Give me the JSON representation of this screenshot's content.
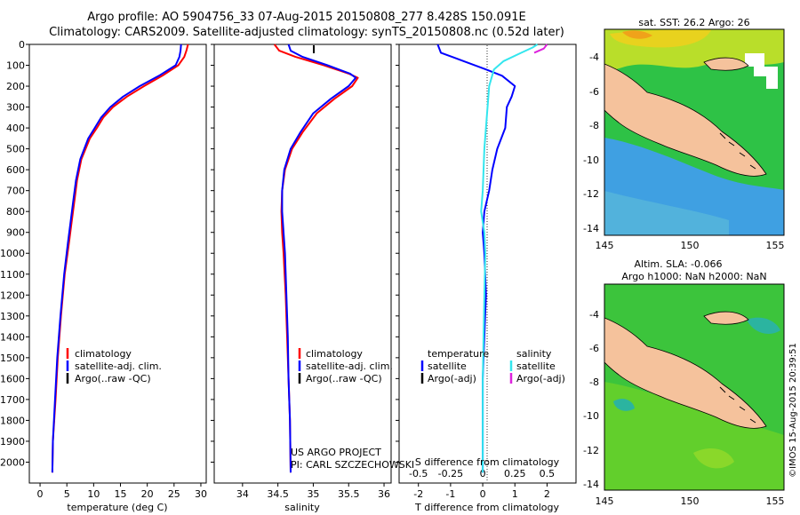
{
  "header": {
    "line1": "Argo profile: AO 5904756_33 07-Aug-2015 20150808_277 8.428S 150.091E",
    "line2": "Climatology: CARS2009. Satellite-adjusted climatology: synTS_20150808.nc (0.52d later)"
  },
  "colors": {
    "climatology": "#ff0000",
    "satellite": "#0000ff",
    "argo": "#000000",
    "sat_salinity": "#33e6ee",
    "argo_adj_salinity": "#dd22dd",
    "land": "#f5c29c",
    "sst_field": "#2ec246",
    "sla_field": "#3cc43c"
  },
  "chart_data": [
    {
      "id": "temperature",
      "type": "line",
      "xlabel": "temperature (deg C)",
      "ylabel": "",
      "xlim": [
        -2,
        31
      ],
      "ylim": [
        2100,
        0
      ],
      "xticks": [
        0,
        5,
        10,
        15,
        20,
        25,
        30
      ],
      "yticks": [
        0,
        100,
        200,
        300,
        400,
        500,
        600,
        700,
        800,
        900,
        1000,
        1100,
        1200,
        1300,
        1400,
        1500,
        1600,
        1700,
        1800,
        1900,
        2000
      ],
      "legend": [
        "climatology",
        "satellite-adj. clim.",
        "Argo(..raw -QC)"
      ],
      "series": [
        {
          "name": "climatology",
          "color": "#ff0000",
          "x": [
            27.6,
            27.3,
            26.9,
            25.8,
            22.8,
            19.4,
            16.2,
            13.6,
            11.8,
            10.6,
            9.3,
            7.7,
            6.9,
            6.4,
            5.9,
            5.4,
            4.6,
            3.9,
            3.3,
            2.9,
            2.4,
            2.3
          ],
          "y": [
            0,
            30,
            60,
            100,
            150,
            200,
            250,
            300,
            350,
            400,
            450,
            550,
            650,
            750,
            850,
            950,
            1100,
            1300,
            1500,
            1700,
            1900,
            2050
          ]
        },
        {
          "name": "satellite-adj. clim.",
          "color": "#0000ff",
          "x": [
            26.3,
            26.2,
            26.0,
            25.3,
            22.2,
            18.6,
            15.5,
            13.1,
            11.4,
            10.2,
            9.0,
            7.5,
            6.7,
            6.2,
            5.7,
            5.2,
            4.5,
            3.8,
            3.2,
            2.8,
            2.4,
            2.3
          ],
          "y": [
            0,
            30,
            60,
            100,
            150,
            200,
            250,
            300,
            350,
            400,
            450,
            550,
            650,
            750,
            850,
            950,
            1100,
            1300,
            1500,
            1700,
            1900,
            2050
          ]
        }
      ]
    },
    {
      "id": "salinity",
      "type": "line",
      "xlabel": "salinity",
      "ylabel": "",
      "xlim": [
        33.6,
        36.1
      ],
      "ylim": [
        2100,
        0
      ],
      "xticks": [
        34,
        34.5,
        35,
        35.5,
        36
      ],
      "legend": [
        "climatology",
        "satellite-adj. clim.",
        "Argo(..raw -QC)"
      ],
      "annotation": [
        "US ARGO PROJECT",
        "PI: CARL SZCZECHOWSKI"
      ],
      "series": [
        {
          "name": "climatology",
          "color": "#ff0000",
          "x": [
            34.45,
            34.52,
            34.75,
            35.15,
            35.5,
            35.63,
            35.55,
            35.3,
            35.05,
            34.85,
            34.7,
            34.6,
            34.56,
            34.55,
            34.56,
            34.58,
            34.61,
            34.63,
            34.65,
            34.67,
            34.68
          ],
          "y": [
            0,
            30,
            60,
            100,
            140,
            160,
            200,
            260,
            330,
            420,
            500,
            600,
            700,
            800,
            900,
            1000,
            1200,
            1400,
            1600,
            1800,
            2050
          ]
        },
        {
          "name": "satellite-adj. clim.",
          "color": "#0000ff",
          "x": [
            34.65,
            34.68,
            34.85,
            35.2,
            35.52,
            35.6,
            35.5,
            35.25,
            35.0,
            34.82,
            34.68,
            34.59,
            34.56,
            34.56,
            34.58,
            34.6,
            34.62,
            34.64,
            34.65,
            34.67,
            34.68
          ],
          "y": [
            0,
            30,
            60,
            100,
            140,
            160,
            200,
            260,
            330,
            420,
            500,
            600,
            700,
            800,
            900,
            1000,
            1200,
            1400,
            1600,
            1800,
            2050
          ]
        }
      ]
    },
    {
      "id": "differences",
      "type": "line",
      "xlabel": "T difference from climatology",
      "xlabel2": "S difference from climatology",
      "xlim": [
        -2.6,
        2.9
      ],
      "ylim": [
        2100,
        0
      ],
      "xticks": [
        -2,
        -1,
        0,
        1,
        2
      ],
      "xticks2": [
        "-0.5",
        "-0.25",
        "0",
        "0.25",
        "0.5"
      ],
      "legend_temperature": [
        "temperature",
        "satellite",
        "Argo(-adj)"
      ],
      "legend_salinity": [
        "salinity",
        "satellite",
        "Argo(-adj)"
      ],
      "series": [
        {
          "name": "temperature satellite",
          "color": "#0000ff",
          "x": [
            -1.4,
            -1.3,
            -0.6,
            0.1,
            0.6,
            1.0,
            0.9,
            0.75,
            0.7,
            0.45,
            0.3,
            0.2,
            0.05,
            0.0,
            0.05,
            0.1,
            0.05,
            0.0,
            0.0,
            0.0
          ],
          "y": [
            0,
            40,
            80,
            120,
            150,
            200,
            250,
            300,
            400,
            500,
            600,
            700,
            800,
            900,
            1000,
            1200,
            1400,
            1600,
            1800,
            2050
          ]
        },
        {
          "name": "salinity satellite",
          "color": "#33e6ee",
          "x": [
            1.7,
            1.55,
            1.2,
            0.65,
            0.35,
            0.2,
            0.15,
            0.1,
            0.05,
            0.0,
            -0.05,
            0.05,
            0.08,
            0.05,
            0.0,
            0.0
          ],
          "y": [
            0,
            15,
            40,
            80,
            120,
            200,
            300,
            400,
            500,
            700,
            800,
            900,
            1000,
            1200,
            1600,
            2050
          ]
        },
        {
          "name": "salinity Argo(-adj)",
          "color": "#dd22dd",
          "x": [
            2.0,
            1.9,
            1.6
          ],
          "y": [
            0,
            20,
            40
          ]
        }
      ]
    }
  ],
  "maps": {
    "sst": {
      "title": "sat. SST: 26.2 Argo: 26",
      "yticks": [
        "-4",
        "-6",
        "-8",
        "-10",
        "-12",
        "-14"
      ],
      "xticks": [
        "145",
        "150",
        "155"
      ]
    },
    "sla": {
      "title1": "Altim. SLA: -0.066",
      "title2": "Argo h1000: NaN h2000: NaN",
      "yticks": [
        "-4",
        "-6",
        "-8",
        "-10",
        "-12",
        "-14"
      ],
      "xticks": [
        "145",
        "150",
        "155"
      ]
    }
  },
  "credit": "©IMOS 15-Aug-2015 20:39:51"
}
